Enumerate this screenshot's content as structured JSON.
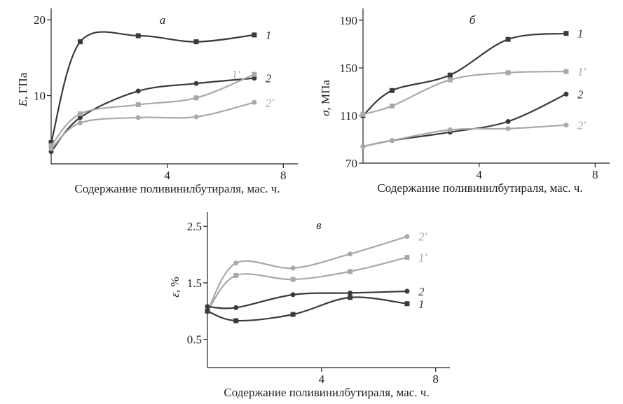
{
  "colors": {
    "dark": "#3a3a3a",
    "light": "#a9a9a9",
    "axis": "#222222"
  },
  "chart_data": [
    {
      "type": "line",
      "panel_letter": "a",
      "xlabel": "Содержание поливинилбутираля, мас. ч.",
      "ylabel_var": "E",
      "ylabel_unit": ", ГПа",
      "xlim": [
        0,
        8.5
      ],
      "ylim": [
        1,
        21.5
      ],
      "xticks": [
        4,
        8
      ],
      "xtick_labels": [
        "4",
        "8"
      ],
      "yticks": [
        10,
        20
      ],
      "ytick_labels": [
        "10",
        "20"
      ],
      "grid": false,
      "series": [
        {
          "name": "1",
          "marker": "square",
          "shade": "dark",
          "label_pos": "right",
          "x": [
            0,
            1,
            3,
            5,
            7
          ],
          "y": [
            3.8,
            17.1,
            17.9,
            17.1,
            18.0
          ]
        },
        {
          "name": "2",
          "marker": "circle",
          "shade": "dark",
          "label_pos": "right",
          "x": [
            0,
            1,
            3,
            5,
            7
          ],
          "y": [
            2.6,
            7.1,
            10.6,
            11.6,
            12.3
          ]
        },
        {
          "name": "1′",
          "marker": "square",
          "shade": "light",
          "label_pos": "left",
          "x": [
            0,
            1,
            3,
            5,
            7
          ],
          "y": [
            3.4,
            7.6,
            8.8,
            9.7,
            12.8
          ]
        },
        {
          "name": "2′",
          "marker": "circle",
          "shade": "light",
          "label_pos": "right",
          "x": [
            0,
            1,
            3,
            5,
            7
          ],
          "y": [
            3.0,
            6.4,
            7.1,
            7.2,
            9.1
          ]
        }
      ]
    },
    {
      "type": "line",
      "panel_letter": "б",
      "xlabel": "Содержание поливинилбутираля, мас. ч.",
      "ylabel_var": "σ",
      "ylabel_unit": ", МПа",
      "xlim": [
        0,
        8.5
      ],
      "ylim": [
        70,
        200
      ],
      "xticks": [
        4,
        8
      ],
      "xtick_labels": [
        "4",
        "8"
      ],
      "yticks": [
        70,
        110,
        150,
        190
      ],
      "ytick_labels": [
        "70",
        "110",
        "150",
        "190"
      ],
      "grid": false,
      "series": [
        {
          "name": "1",
          "marker": "square",
          "shade": "dark",
          "label_pos": "right",
          "x": [
            0,
            1,
            3,
            5,
            7
          ],
          "y": [
            110,
            131,
            144,
            174,
            179
          ]
        },
        {
          "name": "1′",
          "marker": "square",
          "shade": "light",
          "label_pos": "right",
          "x": [
            0,
            1,
            3,
            5,
            7
          ],
          "y": [
            111,
            118,
            140,
            146,
            147
          ]
        },
        {
          "name": "2",
          "marker": "circle",
          "shade": "dark",
          "label_pos": "right",
          "x": [
            0,
            1,
            3,
            5,
            7
          ],
          "y": [
            84,
            89,
            96,
            105,
            128
          ]
        },
        {
          "name": "2′",
          "marker": "circle",
          "shade": "light",
          "label_pos": "right",
          "x": [
            0,
            1,
            3,
            5,
            7
          ],
          "y": [
            84,
            89,
            98,
            99,
            102
          ]
        }
      ]
    },
    {
      "type": "line",
      "panel_letter": "в",
      "xlabel": "Содержание поливинилбутираля, мас. ч.",
      "ylabel_var": "ε",
      "ylabel_unit": ", %",
      "xlim": [
        0,
        8.5
      ],
      "ylim": [
        0,
        2.75
      ],
      "xticks": [
        4,
        8
      ],
      "xtick_labels": [
        "4",
        "8"
      ],
      "yticks": [
        0.5,
        1.5,
        2.5
      ],
      "ytick_labels": [
        "0.5",
        "1.5",
        "2.5"
      ],
      "grid": false,
      "series": [
        {
          "name": "2′",
          "marker": "circle",
          "shade": "light",
          "label_pos": "right",
          "x": [
            0,
            1,
            3,
            5,
            7
          ],
          "y": [
            1.0,
            1.85,
            1.76,
            2.01,
            2.32
          ]
        },
        {
          "name": "1′",
          "marker": "square",
          "shade": "light",
          "label_pos": "right",
          "x": [
            0,
            1,
            3,
            5,
            7
          ],
          "y": [
            1.0,
            1.63,
            1.56,
            1.7,
            1.95
          ]
        },
        {
          "name": "2",
          "marker": "circle",
          "shade": "dark",
          "label_pos": "right",
          "x": [
            0,
            1,
            3,
            5,
            7
          ],
          "y": [
            1.08,
            1.06,
            1.29,
            1.32,
            1.35
          ]
        },
        {
          "name": "1",
          "marker": "square",
          "shade": "dark",
          "label_pos": "right",
          "x": [
            0,
            1,
            3,
            5,
            7
          ],
          "y": [
            1.0,
            0.83,
            0.94,
            1.24,
            1.13
          ]
        }
      ]
    }
  ]
}
